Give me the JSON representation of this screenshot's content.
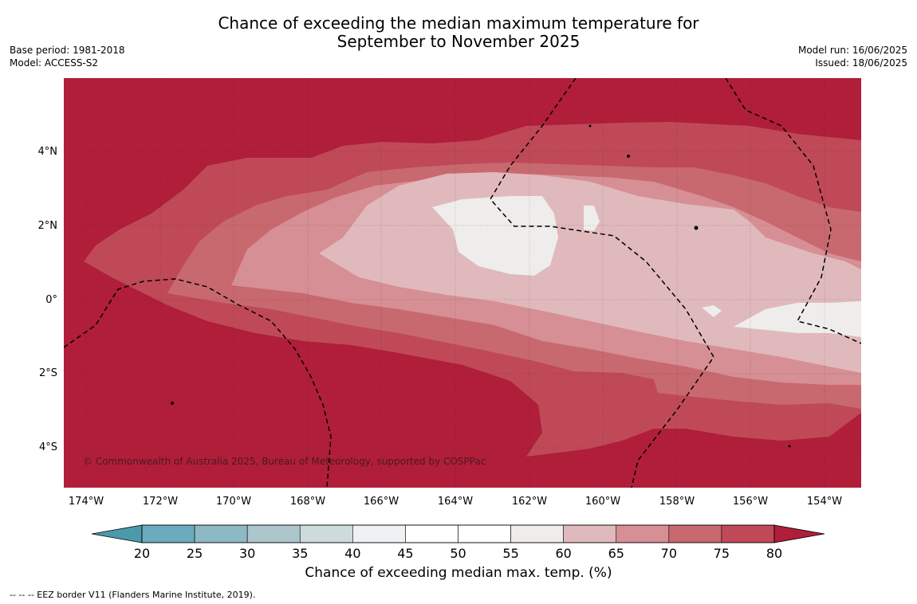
{
  "header": {
    "title_line1": "Chance of exceeding the median maximum temperature for",
    "title_line2": "September to November 2025",
    "base_period": "Base period: 1981-2018",
    "model": "Model: ACCESS-S2",
    "model_run": "Model run: 16/06/2025",
    "issued": "Issued: 18/06/2025"
  },
  "map": {
    "latitude_labels": [
      "4°N",
      "2°N",
      "0°",
      "2°S",
      "4°S"
    ],
    "longitude_labels": [
      "174°W",
      "172°W",
      "170°W",
      "168°W",
      "166°W",
      "164°W",
      "162°W",
      "160°W",
      "158°W",
      "156°W",
      "154°W"
    ],
    "copyright": "© Commonwealth of Australia 2025, Bureau of Meteorology, supported by COSPPac",
    "colors": {
      "c80": "#b01e3a",
      "c75": "#c04957",
      "c70": "#c8696f",
      "c65": "#d68f94",
      "c60": "#e0b9bc",
      "c55": "#eeedeb"
    }
  },
  "colorbar": {
    "title": "Chance of exceeding median max. temp. (%)",
    "ticks": [
      "20",
      "25",
      "30",
      "35",
      "40",
      "45",
      "50",
      "55",
      "60",
      "65",
      "70",
      "75",
      "80"
    ],
    "colors": [
      "#4a9aab",
      "#6aabbd",
      "#8db9c5",
      "#acc6cc",
      "#cedbdd",
      "#eef2f2",
      "#ffffff",
      "#ffffff",
      "#eeedeb",
      "#e0b9bc",
      "#d68f94",
      "#c8696f",
      "#c04957",
      "#b01e3a"
    ]
  },
  "footer": {
    "eez_note": "--  --  -- EEZ border V11 (Flanders Marine Institute, 2019)."
  }
}
